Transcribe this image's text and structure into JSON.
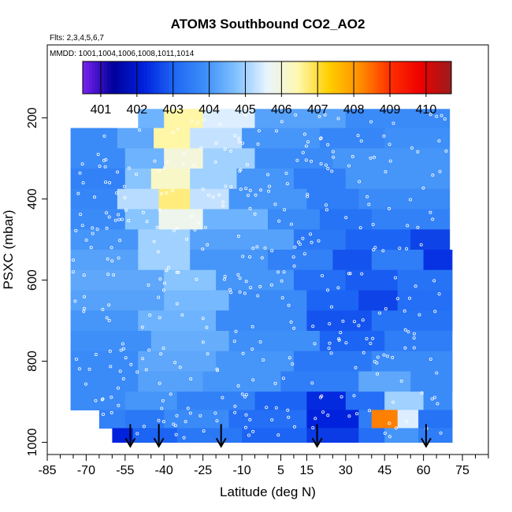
{
  "chart_data": {
    "type": "heatmap",
    "title": "ATOM3 Southbound CO2_AO2",
    "subtitle_flights": "Flts: 2,3,4,5,6,7",
    "subtitle_dates": "MMDD: 1001,1004,1006,1008,1011,1014",
    "xlabel": "Latitude (deg N)",
    "ylabel": "PSXC (mbar)",
    "xlim": [
      -85,
      85
    ],
    "ylim": [
      1030,
      20
    ],
    "x_ticks": [
      "-85",
      "-70",
      "-55",
      "-40",
      "-25",
      "-10",
      "5",
      "15",
      "30",
      "45",
      "60",
      "75"
    ],
    "x_tick_values": [
      -85,
      -70,
      -55,
      -40,
      -25,
      -10,
      5,
      15,
      30,
      45,
      60,
      75
    ],
    "y_ticks": [
      "200",
      "400",
      "600",
      "800",
      "1000"
    ],
    "y_tick_values": [
      200,
      400,
      600,
      800,
      1000
    ],
    "colorbar": {
      "labels": [
        "401",
        "402",
        "403",
        "404",
        "405",
        "406",
        "407",
        "408",
        "409",
        "410"
      ],
      "min": 400.5,
      "max": 410.7,
      "colors": [
        "#7a22f0",
        "#00009a",
        "#0022dd",
        "#1e68f5",
        "#3e8ff8",
        "#82c2ff",
        "#e8f4ff",
        "#fff8b0",
        "#ffd000",
        "#ff9000",
        "#ff3000",
        "#ee0000",
        "#9a1c1c"
      ]
    },
    "flight_latitudes": [
      -53,
      -42,
      -18,
      19,
      61
    ],
    "bands": [
      {
        "p": 200,
        "segs": [
          [
            -50,
            -40,
            404.5
          ],
          [
            -40,
            -25,
            406.5
          ],
          [
            -25,
            -5,
            405.5
          ],
          [
            -5,
            30,
            404.2
          ],
          [
            30,
            70,
            403.8
          ]
        ]
      },
      {
        "p": 250,
        "segs": [
          [
            -76,
            -58,
            403.8
          ],
          [
            -58,
            -44,
            404.3
          ],
          [
            -44,
            -30,
            406.5
          ],
          [
            -30,
            -10,
            405.3
          ],
          [
            -10,
            20,
            404.0
          ],
          [
            20,
            45,
            403.7
          ],
          [
            45,
            70,
            403.9
          ]
        ]
      },
      {
        "p": 300,
        "segs": [
          [
            -76,
            -55,
            403.8
          ],
          [
            -55,
            -40,
            404.5
          ],
          [
            -40,
            -25,
            406.0
          ],
          [
            -25,
            -5,
            405.0
          ],
          [
            -5,
            25,
            403.8
          ],
          [
            25,
            70,
            404.0
          ]
        ]
      },
      {
        "p": 350,
        "segs": [
          [
            -76,
            -55,
            403.6
          ],
          [
            -55,
            -45,
            404.8
          ],
          [
            -45,
            -30,
            406.2
          ],
          [
            -30,
            -12,
            405.0
          ],
          [
            -12,
            10,
            404.0
          ],
          [
            10,
            30,
            403.5
          ],
          [
            30,
            70,
            404.0
          ]
        ]
      },
      {
        "p": 400,
        "segs": [
          [
            -76,
            -58,
            403.7
          ],
          [
            -58,
            -42,
            405.2
          ],
          [
            -42,
            -30,
            406.7
          ],
          [
            -30,
            -15,
            405.3
          ],
          [
            -15,
            15,
            404.0
          ],
          [
            15,
            35,
            403.5
          ],
          [
            35,
            70,
            403.8
          ]
        ]
      },
      {
        "p": 450,
        "segs": [
          [
            -76,
            -55,
            403.8
          ],
          [
            -55,
            -42,
            404.8
          ],
          [
            -42,
            -25,
            405.8
          ],
          [
            -25,
            0,
            404.5
          ],
          [
            0,
            20,
            403.8
          ],
          [
            20,
            40,
            403.3
          ],
          [
            40,
            70,
            403.6
          ]
        ]
      },
      {
        "p": 500,
        "segs": [
          [
            -76,
            -50,
            404.0
          ],
          [
            -50,
            -30,
            405.0
          ],
          [
            -30,
            10,
            404.2
          ],
          [
            10,
            30,
            403.4
          ],
          [
            30,
            55,
            403.0
          ],
          [
            55,
            70,
            402.6
          ]
        ]
      },
      {
        "p": 550,
        "segs": [
          [
            -76,
            -50,
            404.2
          ],
          [
            -50,
            -30,
            405.0
          ],
          [
            -30,
            0,
            404.0
          ],
          [
            0,
            25,
            403.6
          ],
          [
            25,
            40,
            402.8
          ],
          [
            40,
            60,
            403.5
          ],
          [
            60,
            71,
            402.4
          ]
        ]
      },
      {
        "p": 600,
        "segs": [
          [
            -76,
            -40,
            404.3
          ],
          [
            -40,
            -20,
            404.8
          ],
          [
            -20,
            10,
            404.0
          ],
          [
            10,
            30,
            403.2
          ],
          [
            30,
            50,
            402.9
          ],
          [
            50,
            71,
            403.3
          ]
        ]
      },
      {
        "p": 650,
        "segs": [
          [
            -76,
            -40,
            404.2
          ],
          [
            -40,
            -15,
            404.6
          ],
          [
            -15,
            15,
            403.8
          ],
          [
            15,
            35,
            403.0
          ],
          [
            35,
            50,
            402.6
          ],
          [
            50,
            71,
            403.2
          ]
        ]
      },
      {
        "p": 700,
        "segs": [
          [
            -76,
            -50,
            404.0
          ],
          [
            -50,
            -20,
            404.5
          ],
          [
            -20,
            15,
            403.8
          ],
          [
            15,
            40,
            402.8
          ],
          [
            40,
            71,
            403.3
          ]
        ]
      },
      {
        "p": 750,
        "segs": [
          [
            -76,
            -45,
            403.9
          ],
          [
            -45,
            -15,
            404.4
          ],
          [
            -15,
            20,
            403.9
          ],
          [
            20,
            45,
            403.0
          ],
          [
            45,
            71,
            403.5
          ]
        ]
      },
      {
        "p": 800,
        "segs": [
          [
            -76,
            -50,
            403.8
          ],
          [
            -50,
            -20,
            404.3
          ],
          [
            -20,
            10,
            404.0
          ],
          [
            10,
            40,
            403.4
          ],
          [
            40,
            71,
            403.8
          ]
        ]
      },
      {
        "p": 850,
        "segs": [
          [
            -76,
            -50,
            403.8
          ],
          [
            -50,
            -25,
            404.2
          ],
          [
            -25,
            5,
            404.0
          ],
          [
            5,
            35,
            403.5
          ],
          [
            35,
            55,
            404.3
          ],
          [
            55,
            71,
            403.8
          ]
        ]
      },
      {
        "p": 900,
        "segs": [
          [
            -76,
            -55,
            403.8
          ],
          [
            -55,
            -35,
            404.0
          ],
          [
            -35,
            -5,
            403.6
          ],
          [
            -5,
            15,
            403.0
          ],
          [
            15,
            30,
            402.3
          ],
          [
            30,
            45,
            403.2
          ],
          [
            45,
            60,
            405.0
          ],
          [
            60,
            71,
            403.8
          ]
        ]
      },
      {
        "p": 940,
        "segs": [
          [
            -65,
            -55,
            403.6
          ],
          [
            -55,
            -40,
            403.4
          ],
          [
            -40,
            -15,
            403.8
          ],
          [
            -15,
            15,
            403.2
          ],
          [
            15,
            35,
            402.2
          ],
          [
            35,
            40,
            403.5
          ],
          [
            40,
            50,
            408.3
          ],
          [
            50,
            58,
            405.5
          ],
          [
            58,
            71,
            403.3
          ]
        ]
      },
      {
        "p": 990,
        "segs": [
          [
            -60,
            -52,
            402.2
          ],
          [
            -52,
            -35,
            403.0
          ],
          [
            -35,
            -10,
            403.4
          ],
          [
            -10,
            15,
            403.0
          ],
          [
            15,
            35,
            402.5
          ],
          [
            35,
            45,
            403.2
          ],
          [
            45,
            58,
            404.0
          ],
          [
            58,
            71,
            403.5
          ]
        ]
      }
    ]
  }
}
